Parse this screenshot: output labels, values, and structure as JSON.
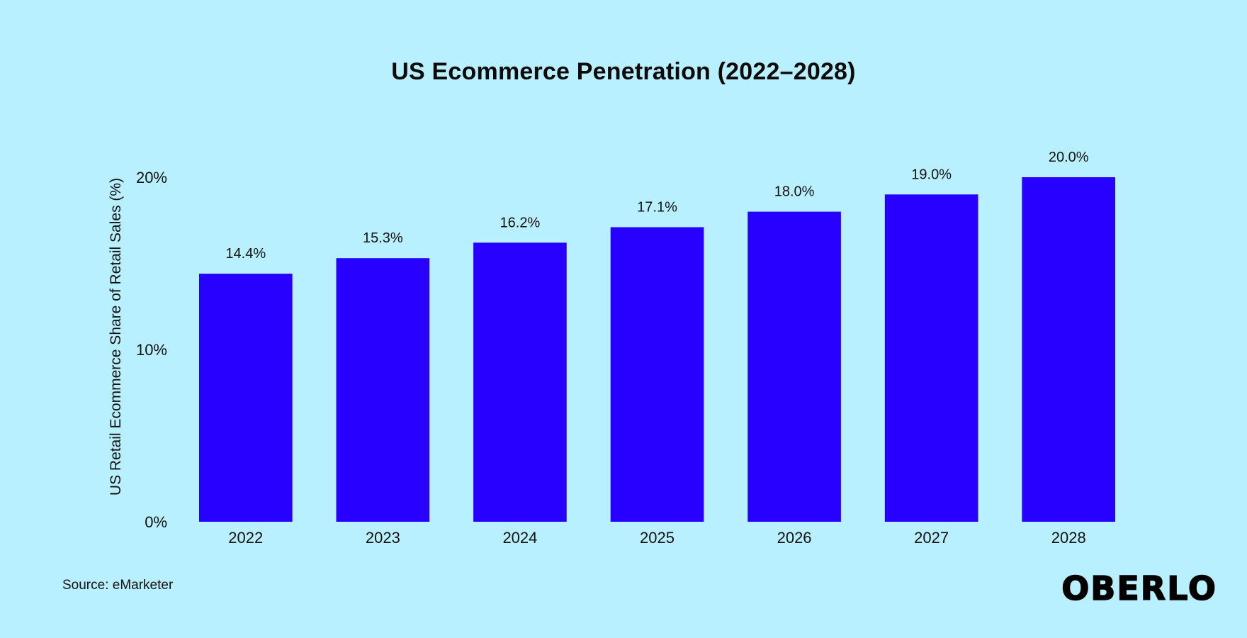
{
  "chart_data": {
    "type": "bar",
    "title": "US Ecommerce Penetration (2022–2028)",
    "xlabel": "",
    "ylabel": "US Retail Ecommerce Share of Retail Sales (%)",
    "categories": [
      "2022",
      "2023",
      "2024",
      "2025",
      "2026",
      "2027",
      "2028"
    ],
    "values": [
      14.4,
      15.3,
      16.2,
      17.1,
      18.0,
      19.0,
      20.0
    ],
    "data_labels": [
      "14.4%",
      "15.3%",
      "16.2%",
      "17.1%",
      "18.0%",
      "19.0%",
      "20.0%"
    ],
    "ylim": [
      0,
      20
    ],
    "yticks": [
      0,
      10,
      20
    ],
    "ytick_labels": [
      "0%",
      "10%",
      "20%"
    ],
    "grid": false,
    "legend": "none",
    "bar_color": "#2800ff"
  },
  "footer": {
    "source": "Source: eMarketer",
    "logo": "OBERLO"
  },
  "colors": {
    "background": "#b9f0ff",
    "text": "#111111"
  }
}
